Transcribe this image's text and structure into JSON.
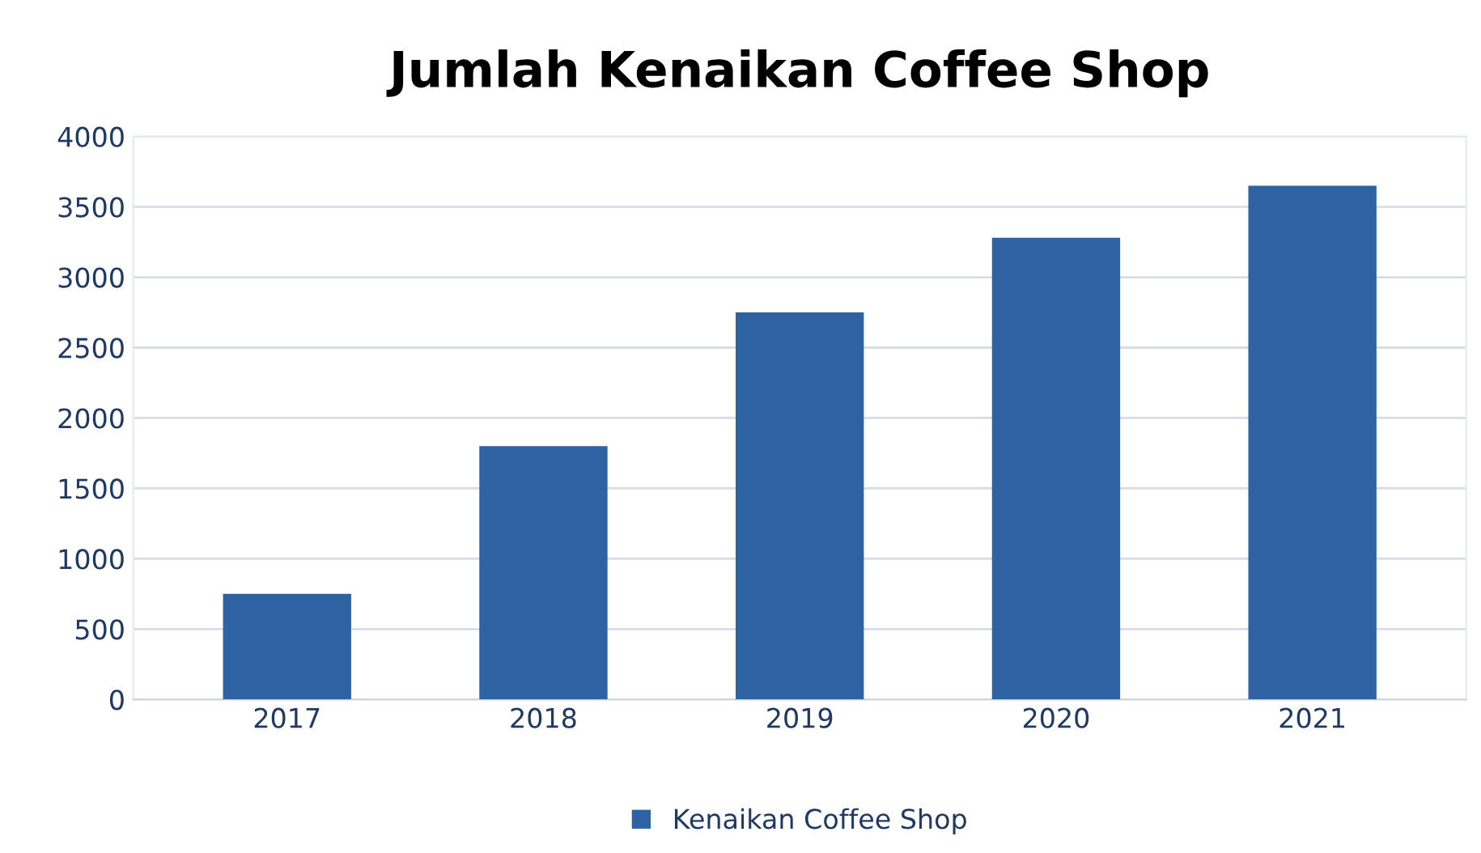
{
  "chart_data": {
    "type": "bar",
    "title": "Jumlah Kenaikan Coffee Shop",
    "categories": [
      "2017",
      "2018",
      "2019",
      "2020",
      "2021"
    ],
    "series": [
      {
        "name": "Kenaikan Coffee Shop",
        "color": "#2e62a3",
        "values": [
          750,
          1800,
          2750,
          3280,
          3650
        ]
      }
    ],
    "ylim": [
      0,
      4000
    ],
    "yticks": [
      0,
      500,
      1000,
      1500,
      2000,
      2500,
      3000,
      3500,
      4000
    ],
    "grid": "y",
    "legend": "bottom"
  }
}
